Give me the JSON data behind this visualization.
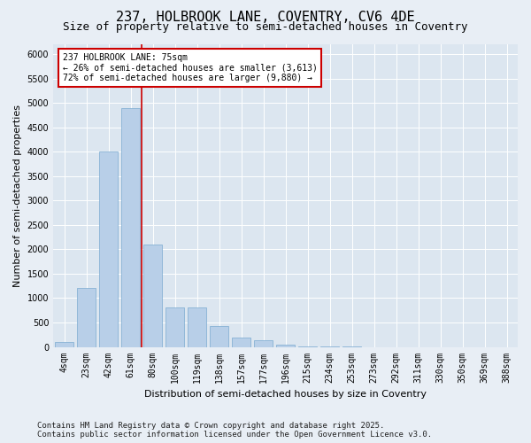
{
  "title1": "237, HOLBROOK LANE, COVENTRY, CV6 4DE",
  "title2": "Size of property relative to semi-detached houses in Coventry",
  "xlabel": "Distribution of semi-detached houses by size in Coventry",
  "ylabel": "Number of semi-detached properties",
  "categories": [
    "4sqm",
    "23sqm",
    "42sqm",
    "61sqm",
    "80sqm",
    "100sqm",
    "119sqm",
    "138sqm",
    "157sqm",
    "177sqm",
    "196sqm",
    "215sqm",
    "234sqm",
    "253sqm",
    "273sqm",
    "292sqm",
    "311sqm",
    "330sqm",
    "350sqm",
    "369sqm",
    "388sqm"
  ],
  "values": [
    100,
    1200,
    4000,
    4900,
    2100,
    800,
    800,
    430,
    200,
    130,
    40,
    15,
    5,
    2,
    1,
    1,
    1,
    0,
    0,
    0,
    0
  ],
  "bar_color": "#b8cfe8",
  "bar_edge_color": "#7aaad0",
  "vline_color": "#cc0000",
  "annotation_label": "237 HOLBROOK LANE: 75sqm",
  "annotation_line1": "← 26% of semi-detached houses are smaller (3,613)",
  "annotation_line2": "72% of semi-detached houses are larger (9,880) →",
  "ylim": [
    0,
    6200
  ],
  "yticks": [
    0,
    500,
    1000,
    1500,
    2000,
    2500,
    3000,
    3500,
    4000,
    4500,
    5000,
    5500,
    6000
  ],
  "bg_color": "#e8eef5",
  "plot_bg_color": "#dce6f0",
  "footer1": "Contains HM Land Registry data © Crown copyright and database right 2025.",
  "footer2": "Contains public sector information licensed under the Open Government Licence v3.0.",
  "title1_fontsize": 11,
  "title2_fontsize": 9,
  "ylabel_fontsize": 8,
  "xlabel_fontsize": 8,
  "tick_fontsize": 7,
  "annotation_fontsize": 7,
  "footer_fontsize": 6.5
}
